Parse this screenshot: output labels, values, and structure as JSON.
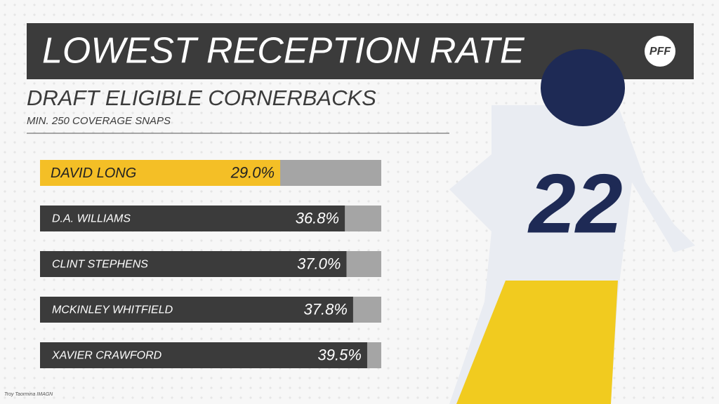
{
  "chart_data": {
    "type": "hbar",
    "title": "LOWEST RECEPTION RATE",
    "subtitle": "DRAFT ELIGIBLE CORNERBACKS",
    "note": "MIN. 250 COVERAGE SNAPS",
    "logo": "PFF",
    "credit": "Troy Taormina IMAGN",
    "categories": [
      "DAVID LONG",
      "D.A. WILLIAMS",
      "CLINT STEPHENS",
      "MCKINLEY WHITFIELD",
      "XAVIER CRAWFORD"
    ],
    "values": [
      29.0,
      36.8,
      37.0,
      37.8,
      39.5
    ],
    "value_labels": [
      "29.0%",
      "36.8%",
      "37.0%",
      "37.8%",
      "39.5%"
    ],
    "colors": [
      "#f4bf26",
      "#3b3b3b",
      "#3b3b3b",
      "#3b3b3b",
      "#3b3b3b"
    ],
    "track_color": "#a5a5a5",
    "xlim": [
      0,
      41.2
    ]
  }
}
